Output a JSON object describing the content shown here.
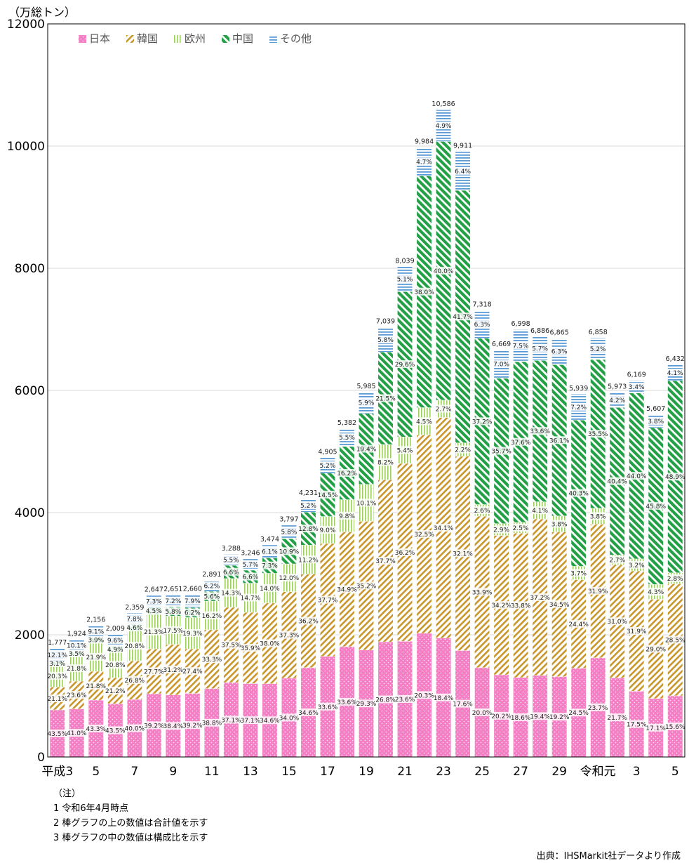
{
  "chart_data": {
    "type": "bar",
    "stacked": true,
    "y_unit_label": "（万総トン）",
    "ylim": [
      0,
      12000
    ],
    "yticks": [
      0,
      2000,
      4000,
      6000,
      8000,
      10000,
      12000
    ],
    "ytick_labels": [
      "0",
      "2000",
      "4000",
      "6000",
      "8000",
      "10000",
      "12000"
    ],
    "grid": true,
    "legend_position": "top-left",
    "categories": [
      "平成3",
      "4",
      "5",
      "6",
      "7",
      "8",
      "9",
      "10",
      "11",
      "12",
      "13",
      "14",
      "15",
      "16",
      "17",
      "18",
      "19",
      "20",
      "21",
      "22",
      "23",
      "24",
      "25",
      "26",
      "27",
      "28",
      "29",
      "30",
      "令和元",
      "2",
      "3",
      "4",
      "5"
    ],
    "xtick_labels": [
      "平成3",
      "",
      "5",
      "",
      "7",
      "",
      "9",
      "",
      "11",
      "",
      "13",
      "",
      "15",
      "",
      "17",
      "",
      "19",
      "",
      "21",
      "",
      "23",
      "",
      "25",
      "",
      "27",
      "",
      "29",
      "",
      "令和元",
      "",
      "3",
      "",
      "5"
    ],
    "totals": [
      1777,
      1924,
      2156,
      2009,
      2359,
      2647,
      2651,
      2660,
      2891,
      3288,
      3246,
      3474,
      3797,
      4231,
      4905,
      5382,
      5985,
      7039,
      8039,
      9984,
      10586,
      9911,
      7318,
      6669,
      6998,
      6886,
      6865,
      5939,
      6858,
      5973,
      6169,
      5607,
      6432
    ],
    "total_labels": [
      "1,777",
      "1,924",
      "2,156",
      "2,009",
      "2,359",
      "2,647",
      "2,651",
      "2,660",
      "2,891",
      "3,288",
      "3,246",
      "3,474",
      "3,797",
      "4,231",
      "4,905",
      "5,382",
      "5,985",
      "7,039",
      "8,039",
      "9,984",
      "10,586",
      "9,911",
      "7,318",
      "6,669",
      "6,998",
      "6,886",
      "6,865",
      "5,939",
      "6,858",
      "5,973",
      "6,169",
      "5,607",
      "6,432"
    ],
    "series": [
      {
        "name": "日本",
        "color": "#f47fc4",
        "pattern": "dots",
        "shares": [
          43.5,
          41.0,
          43.3,
          43.5,
          40.0,
          39.2,
          38.4,
          39.2,
          38.8,
          37.1,
          37.1,
          34.6,
          34.0,
          34.6,
          33.6,
          33.6,
          29.3,
          26.8,
          23.6,
          20.3,
          18.4,
          17.6,
          20.0,
          20.2,
          18.6,
          19.4,
          19.2,
          24.5,
          23.7,
          21.7,
          17.5,
          17.1,
          15.6
        ],
        "labels": [
          "43.5%",
          "41.0%",
          "43.3%",
          "43.5%",
          "40.0%",
          "39.2%",
          "38.4%",
          "39.2%",
          "38.8%",
          "37.1%",
          "37.1%",
          "34.6%",
          "34.0%",
          "34.6%",
          "33.6%",
          "33.6%",
          "29.3%",
          "26.8%",
          "23.6%",
          "20.3%",
          "18.4%",
          "17.6%",
          "20.0%",
          "20.2%",
          "18.6%",
          "19.4%",
          "19.2%",
          "24.5%",
          "23.7%",
          "21.7%",
          "17.5%",
          "17.1%",
          "15.6%"
        ]
      },
      {
        "name": "韓国",
        "color": "#c8962a",
        "pattern": "diag",
        "shares": [
          21.1,
          23.6,
          21.8,
          21.2,
          26.8,
          27.7,
          31.2,
          27.4,
          33.3,
          37.5,
          35.9,
          38.0,
          37.3,
          36.2,
          37.7,
          34.9,
          35.2,
          37.7,
          36.2,
          32.5,
          34.1,
          32.1,
          33.9,
          34.2,
          33.8,
          37.2,
          34.5,
          24.4,
          31.9,
          31.0,
          31.9,
          29.0,
          28.5
        ],
        "labels": [
          "21.1%",
          "23.6%",
          "21.8%",
          "21.2%",
          "26.8%",
          "27.7%",
          "31.2%",
          "27.4%",
          "33.3%",
          "37.5%",
          "35.9%",
          "38.0%",
          "37.3%",
          "36.2%",
          "37.7%",
          "34.9%",
          "35.2%",
          "37.7%",
          "36.2%",
          "32.5%",
          "34.1%",
          "32.1%",
          "33.9%",
          "34.2%",
          "33.8%",
          "37.2%",
          "34.5%",
          "24.4%",
          "31.9%",
          "31.0%",
          "31.9%",
          "29.0%",
          "28.5%"
        ]
      },
      {
        "name": "欧州",
        "color": "#a6d46a",
        "pattern": "vert",
        "shares": [
          20.3,
          21.8,
          21.9,
          20.8,
          20.8,
          21.3,
          17.5,
          19.3,
          16.2,
          14.3,
          14.7,
          14.0,
          12.0,
          11.2,
          9.0,
          9.8,
          10.1,
          8.2,
          5.4,
          4.5,
          2.7,
          2.2,
          2.6,
          2.9,
          2.5,
          4.1,
          3.8,
          3.7,
          3.8,
          2.7,
          3.2,
          4.3,
          2.8
        ],
        "labels": [
          "20.3%",
          "21.8%",
          "21.9%",
          "20.8%",
          "20.8%",
          "21.3%",
          "17.5%",
          "19.3%",
          "16.2%",
          "14.3%",
          "14.7%",
          "14.0%",
          "12.0%",
          "11.2%",
          "9.0%",
          "9.8%",
          "10.1%",
          "8.2%",
          "5.4%",
          "4.5%",
          "2.7%",
          "2.2%",
          "2.6%",
          "2.9%",
          "2.5%",
          "4.1%",
          "3.8%",
          "3.7%",
          "3.8%",
          "2.7%",
          "3.2%",
          "4.3%",
          "2.8%"
        ]
      },
      {
        "name": "中国",
        "color": "#2aa84a",
        "pattern": "diag-bold",
        "shares": [
          3.1,
          3.5,
          3.9,
          4.9,
          4.6,
          4.5,
          5.8,
          6.2,
          5.6,
          6.6,
          6.6,
          7.3,
          10.9,
          12.8,
          14.5,
          16.2,
          19.4,
          21.5,
          29.6,
          38.0,
          40.0,
          41.7,
          37.2,
          35.7,
          37.6,
          33.6,
          36.1,
          40.3,
          35.5,
          40.4,
          44.0,
          45.8,
          48.9
        ],
        "labels": [
          "3.1%",
          "3.5%",
          "3.9%",
          "4.9%",
          "4.6%",
          "4.5%",
          "5.8%",
          "6.2%",
          "5.6%",
          "6.6%",
          "6.6%",
          "7.3%",
          "10.9%",
          "12.8%",
          "14.5%",
          "16.2%",
          "19.4%",
          "21.5%",
          "29.6%",
          "38.0%",
          "40.0%",
          "41.7%",
          "37.2%",
          "35.7%",
          "37.6%",
          "33.6%",
          "36.1%",
          "40.3%",
          "35.5%",
          "40.4%",
          "44.0%",
          "45.8%",
          "48.9%"
        ]
      },
      {
        "name": "その他",
        "color": "#6aa6d8",
        "pattern": "horiz",
        "shares": [
          12.1,
          10.1,
          9.1,
          9.6,
          7.8,
          7.3,
          7.2,
          7.9,
          6.2,
          5.5,
          5.7,
          6.1,
          5.8,
          5.2,
          5.2,
          5.5,
          5.9,
          5.8,
          5.1,
          4.7,
          4.9,
          6.4,
          6.3,
          7.0,
          7.5,
          5.7,
          6.3,
          7.2,
          5.2,
          4.2,
          3.4,
          3.8,
          4.1
        ],
        "labels": [
          "12.1%",
          "10.1%",
          "9.1%",
          "9.6%",
          "7.8%",
          "7.3%",
          "7.2%",
          "7.9%",
          "6.2%",
          "5.5%",
          "5.7%",
          "6.1%",
          "5.8%",
          "5.2%",
          "5.2%",
          "5.5%",
          "5.9%",
          "5.8%",
          "5.1%",
          "4.7%",
          "4.9%",
          "6.4%",
          "6.3%",
          "7.0%",
          "7.5%",
          "5.7%",
          "6.3%",
          "7.2%",
          "5.2%",
          "4.2%",
          "3.4%",
          "3.8%",
          "4.1%"
        ]
      }
    ]
  },
  "notes": {
    "heading": "（注）",
    "lines": [
      "1 令和6年4月時点",
      "2 棒グラフの上の数値は合計値を示す",
      "3 棒グラフの中の数値は構成比を示す"
    ]
  },
  "source": "出典：IHSMarkit社データより作成"
}
